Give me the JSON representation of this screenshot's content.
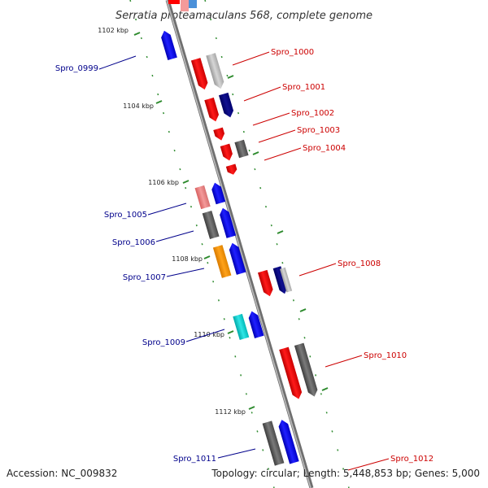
{
  "title": "Serratia proteamaculans 568, complete genome",
  "footer": {
    "accession": "Accession: NC_009832",
    "info": "Topology: circular; Length: 5,448,853 bp; Genes: 5,000"
  },
  "colors": {
    "reverse_label": "#cc0000",
    "forward_label": "#00008b",
    "tick": "#2e8b2e",
    "backbone": "#888888"
  },
  "kbp_ticks": [
    "1102 kbp",
    "1104 kbp",
    "1106 kbp",
    "1108 kbp",
    "1110 kbp",
    "1112 kbp"
  ],
  "genes_reverse": [
    "Spro_1000",
    "Spro_1001",
    "Spro_1002",
    "Spro_1003",
    "Spro_1004",
    "Spro_1008",
    "Spro_1010",
    "Spro_1012"
  ],
  "genes_forward": [
    "Spro_0999",
    "Spro_1005",
    "Spro_1006",
    "Spro_1007",
    "Spro_1009",
    "Spro_1011"
  ]
}
